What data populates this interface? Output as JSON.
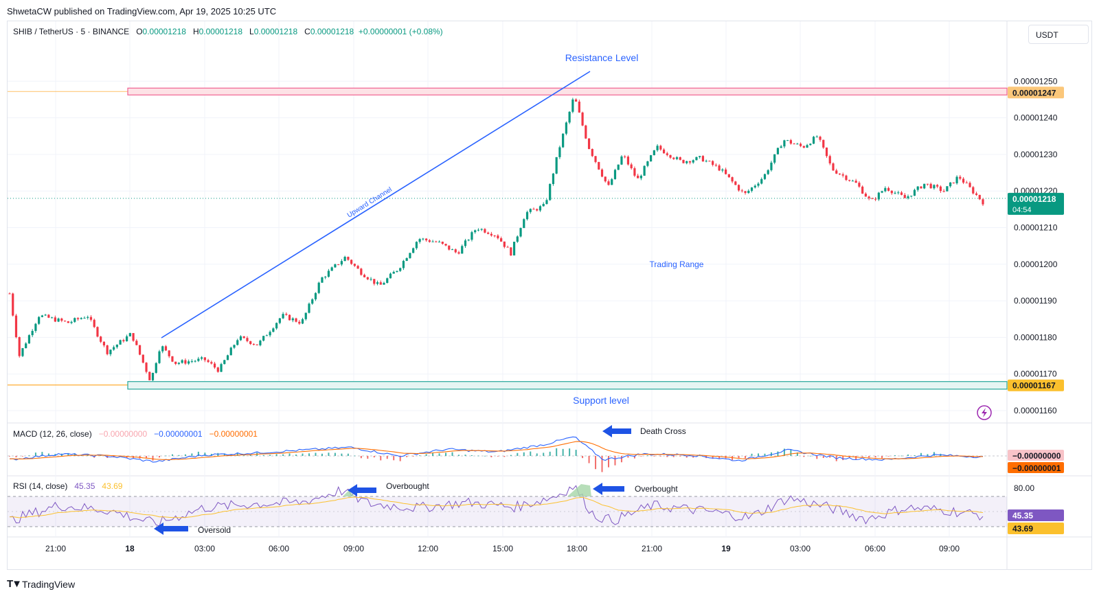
{
  "header": {
    "publish_text": "ShwetaCW published on TradingView.com, Apr 19, 2025 10:25 UTC"
  },
  "legend": {
    "symbol": "SHIB / TetherUS · 5 · BINANCE",
    "o_label": "O",
    "o_value": "0.00001218",
    "h_label": "H",
    "h_value": "0.00001218",
    "l_label": "L",
    "l_value": "0.00001218",
    "c_label": "C",
    "c_value": "0.00001218",
    "change": "+0.00000001 (+0.08%)"
  },
  "currency": "USDT",
  "price_axis": {
    "ticks": [
      "0.00001250",
      "0.00001240",
      "0.00001230",
      "0.00001220",
      "0.00001210",
      "0.00001200",
      "0.00001190",
      "0.00001180",
      "0.00001170",
      "0.00001160"
    ],
    "resistance_tag": "0.00001247",
    "current_tag": "0.00001218",
    "countdown": "04:54",
    "support_tag": "0.00001167"
  },
  "time_axis": {
    "ticks": [
      "21:00",
      "18",
      "03:00",
      "06:00",
      "09:00",
      "12:00",
      "15:00",
      "18:00",
      "21:00",
      "19",
      "03:00",
      "06:00",
      "09:00"
    ]
  },
  "annotations": {
    "resistance": "Resistance Level",
    "support": "Support level",
    "channel": "Upward Channel",
    "range": "Trading Range",
    "death_cross": "Death Cross",
    "overbought_1": "Overbought",
    "overbought_2": "Overbought",
    "oversold": "Oversold"
  },
  "macd": {
    "title": "MACD (12, 26, close)",
    "hist": "−0.00000000",
    "macd": "−0.00000001",
    "signal": "−0.00000001",
    "tag_1": "−0.00000000",
    "tag_2": "−0.00000001"
  },
  "rsi": {
    "title": "RSI (14, close)",
    "value": "45.35",
    "ma": "43.69",
    "level_label": "80.00",
    "tag_rsi": "45.35",
    "tag_ma": "43.69"
  },
  "branding": {
    "logo_text": "TradingView"
  },
  "colors": {
    "up": "#089981",
    "down": "#f23645",
    "accent": "#2962ff",
    "resistance": "#f06292",
    "support": "#26a69a",
    "level_line": "#ff9800",
    "rsi": "#7e57c2",
    "rsi_ma": "#fbc02d"
  },
  "chart_data": {
    "type": "candlestick",
    "symbol": "SHIB / TetherUS",
    "interval": "5",
    "price_range": [
      1.157e-05,
      1.257e-05
    ],
    "resistance": 1.247e-05,
    "support": 1.167e-05,
    "last_price": 1.218e-05,
    "path_points": [
      {
        "t": 0,
        "p": 1.192e-05
      },
      {
        "t": 0.01,
        "p": 1.175e-05
      },
      {
        "t": 0.03,
        "p": 1.186e-05
      },
      {
        "t": 0.06,
        "p": 1.184e-05
      },
      {
        "t": 0.08,
        "p": 1.186e-05
      },
      {
        "t": 0.1,
        "p": 1.176e-05
      },
      {
        "t": 0.125,
        "p": 1.181e-05
      },
      {
        "t": 0.145,
        "p": 1.168e-05
      },
      {
        "t": 0.155,
        "p": 1.178e-05
      },
      {
        "t": 0.17,
        "p": 1.173e-05
      },
      {
        "t": 0.2,
        "p": 1.174e-05
      },
      {
        "t": 0.215,
        "p": 1.171e-05
      },
      {
        "t": 0.235,
        "p": 1.18e-05
      },
      {
        "t": 0.255,
        "p": 1.178e-05
      },
      {
        "t": 0.28,
        "p": 1.186e-05
      },
      {
        "t": 0.3,
        "p": 1.184e-05
      },
      {
        "t": 0.32,
        "p": 1.196e-05
      },
      {
        "t": 0.345,
        "p": 1.202e-05
      },
      {
        "t": 0.36,
        "p": 1.198e-05
      },
      {
        "t": 0.38,
        "p": 1.194e-05
      },
      {
        "t": 0.4,
        "p": 1.199e-05
      },
      {
        "t": 0.42,
        "p": 1.207e-05
      },
      {
        "t": 0.44,
        "p": 1.206e-05
      },
      {
        "t": 0.46,
        "p": 1.203e-05
      },
      {
        "t": 0.48,
        "p": 1.21e-05
      },
      {
        "t": 0.5,
        "p": 1.208e-05
      },
      {
        "t": 0.515,
        "p": 1.203e-05
      },
      {
        "t": 0.53,
        "p": 1.214e-05
      },
      {
        "t": 0.55,
        "p": 1.216e-05
      },
      {
        "t": 0.565,
        "p": 1.232e-05
      },
      {
        "t": 0.58,
        "p": 1.246e-05
      },
      {
        "t": 0.595,
        "p": 1.232e-05
      },
      {
        "t": 0.615,
        "p": 1.221e-05
      },
      {
        "t": 0.63,
        "p": 1.23e-05
      },
      {
        "t": 0.645,
        "p": 1.223e-05
      },
      {
        "t": 0.665,
        "p": 1.232e-05
      },
      {
        "t": 0.69,
        "p": 1.228e-05
      },
      {
        "t": 0.71,
        "p": 1.229e-05
      },
      {
        "t": 0.73,
        "p": 1.226e-05
      },
      {
        "t": 0.755,
        "p": 1.219e-05
      },
      {
        "t": 0.775,
        "p": 1.224e-05
      },
      {
        "t": 0.795,
        "p": 1.234e-05
      },
      {
        "t": 0.815,
        "p": 1.232e-05
      },
      {
        "t": 0.83,
        "p": 1.235e-05
      },
      {
        "t": 0.845,
        "p": 1.226e-05
      },
      {
        "t": 0.87,
        "p": 1.222e-05
      },
      {
        "t": 0.885,
        "p": 1.217e-05
      },
      {
        "t": 0.9,
        "p": 1.221e-05
      },
      {
        "t": 0.92,
        "p": 1.218e-05
      },
      {
        "t": 0.94,
        "p": 1.222e-05
      },
      {
        "t": 0.96,
        "p": 1.22e-05
      },
      {
        "t": 0.975,
        "p": 1.224e-05
      },
      {
        "t": 1.0,
        "p": 1.217e-05
      }
    ],
    "rsi_points": [
      {
        "t": 0,
        "v": 38
      },
      {
        "t": 0.05,
        "v": 58
      },
      {
        "t": 0.1,
        "v": 52
      },
      {
        "t": 0.15,
        "v": 34
      },
      {
        "t": 0.2,
        "v": 55
      },
      {
        "t": 0.25,
        "v": 60
      },
      {
        "t": 0.3,
        "v": 62
      },
      {
        "t": 0.34,
        "v": 78
      },
      {
        "t": 0.37,
        "v": 60
      },
      {
        "t": 0.42,
        "v": 55
      },
      {
        "t": 0.47,
        "v": 62
      },
      {
        "t": 0.52,
        "v": 56
      },
      {
        "t": 0.56,
        "v": 70
      },
      {
        "t": 0.58,
        "v": 84
      },
      {
        "t": 0.6,
        "v": 45
      },
      {
        "t": 0.62,
        "v": 38
      },
      {
        "t": 0.66,
        "v": 58
      },
      {
        "t": 0.72,
        "v": 50
      },
      {
        "t": 0.76,
        "v": 42
      },
      {
        "t": 0.8,
        "v": 68
      },
      {
        "t": 0.84,
        "v": 56
      },
      {
        "t": 0.88,
        "v": 40
      },
      {
        "t": 0.92,
        "v": 55
      },
      {
        "t": 0.96,
        "v": 52
      },
      {
        "t": 1.0,
        "v": 45
      }
    ],
    "macd_points": [
      {
        "t": 0,
        "v": -0.2
      },
      {
        "t": 0.05,
        "v": 0.1
      },
      {
        "t": 0.1,
        "v": 0.0
      },
      {
        "t": 0.15,
        "v": -0.3
      },
      {
        "t": 0.2,
        "v": 0.05
      },
      {
        "t": 0.25,
        "v": 0.15
      },
      {
        "t": 0.3,
        "v": 0.3
      },
      {
        "t": 0.35,
        "v": 0.45
      },
      {
        "t": 0.4,
        "v": 0.0
      },
      {
        "t": 0.45,
        "v": 0.35
      },
      {
        "t": 0.5,
        "v": 0.2
      },
      {
        "t": 0.55,
        "v": 0.6
      },
      {
        "t": 0.58,
        "v": 1.0
      },
      {
        "t": 0.61,
        "v": -0.2
      },
      {
        "t": 0.65,
        "v": 0.1
      },
      {
        "t": 0.7,
        "v": 0.05
      },
      {
        "t": 0.75,
        "v": -0.25
      },
      {
        "t": 0.8,
        "v": 0.3
      },
      {
        "t": 0.85,
        "v": -0.1
      },
      {
        "t": 0.9,
        "v": -0.2
      },
      {
        "t": 0.95,
        "v": 0.05
      },
      {
        "t": 1.0,
        "v": -0.05
      }
    ]
  }
}
